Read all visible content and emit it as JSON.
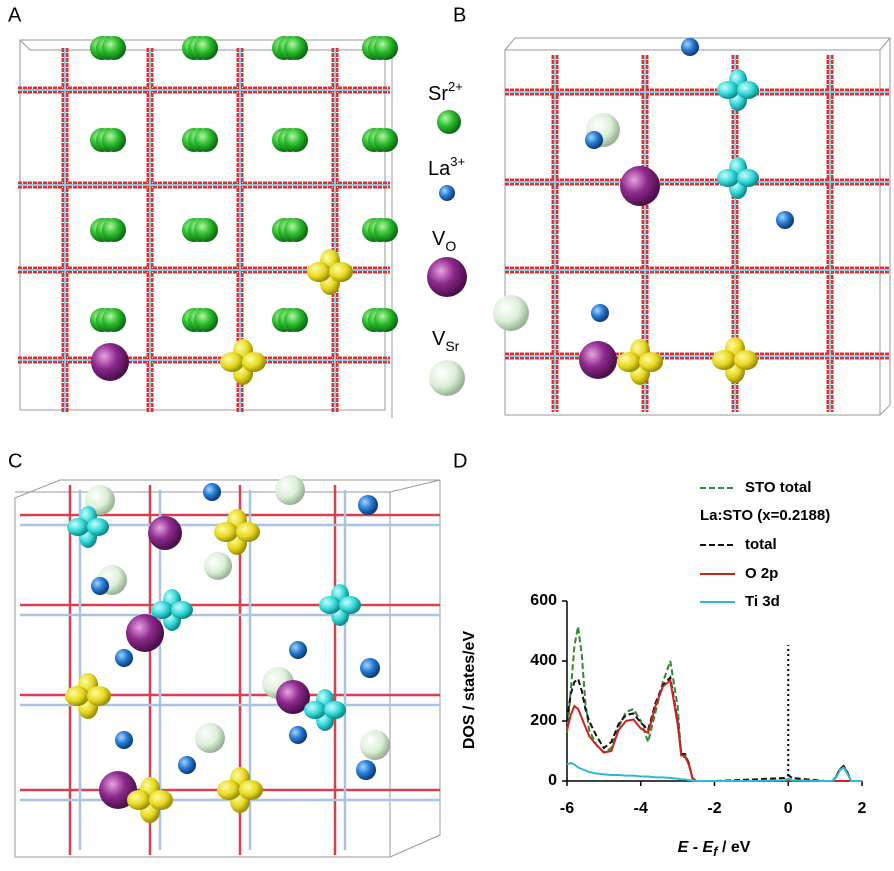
{
  "panel_labels": [
    "A",
    "B",
    "C",
    "D"
  ],
  "species_legend": [
    {
      "base": "Sr",
      "sup": "2+"
    },
    {
      "base": "La",
      "sup": "3+"
    },
    {
      "base": "V",
      "sub": "O"
    },
    {
      "base": "V",
      "sub": "Sr"
    }
  ],
  "chart_data": {
    "type": "line",
    "ylabel": "DOS / states/eV",
    "xlabel": {
      "var": "E",
      "sep": " - ",
      "ref": "E",
      "ref_sub": "f",
      "unit": " / eV"
    },
    "legend_title": "La:STO (x=0.2188)",
    "x": [
      -6,
      -5.9,
      -5.8,
      -5.7,
      -5.6,
      -5.5,
      -5.4,
      -5.2,
      -5.0,
      -4.8,
      -4.6,
      -4.4,
      -4.2,
      -4.0,
      -3.8,
      -3.6,
      -3.4,
      -3.2,
      -3.0,
      -2.9,
      -2.8,
      -2.7,
      -2.6,
      -2.5,
      -2.4,
      -2,
      -1,
      -0.1,
      0,
      0.1,
      1,
      1.2,
      1.3,
      1.4,
      1.5,
      1.6,
      1.7,
      2
    ],
    "series": [
      {
        "name": "STO total",
        "color": "#2e8b2e",
        "dashed": true,
        "values": [
          160,
          300,
          450,
          515,
          420,
          260,
          170,
          120,
          95,
          110,
          180,
          230,
          240,
          200,
          130,
          230,
          330,
          400,
          250,
          80,
          80,
          60,
          10,
          0,
          0,
          0,
          0,
          0,
          5,
          0,
          0,
          0,
          15,
          40,
          50,
          30,
          0,
          0
        ]
      },
      {
        "name": "total",
        "color": "#111111",
        "dashed": true,
        "values": [
          200,
          290,
          330,
          340,
          300,
          240,
          200,
          150,
          110,
          130,
          190,
          220,
          225,
          195,
          170,
          260,
          320,
          345,
          200,
          90,
          90,
          60,
          10,
          0,
          0,
          0,
          5,
          10,
          20,
          10,
          0,
          0,
          15,
          40,
          50,
          30,
          0,
          0
        ]
      },
      {
        "name": "O 2p",
        "color": "#cc2222",
        "dashed": false,
        "values": [
          170,
          220,
          250,
          240,
          210,
          180,
          150,
          120,
          95,
          100,
          170,
          200,
          205,
          175,
          160,
          250,
          315,
          335,
          190,
          85,
          85,
          55,
          10,
          0,
          0,
          0,
          0,
          0,
          0,
          0,
          0,
          0,
          0,
          0,
          0,
          0,
          0,
          0
        ]
      },
      {
        "name": "Ti 3d",
        "color": "#33b5d6",
        "dashed": false,
        "values": [
          55,
          60,
          55,
          45,
          40,
          35,
          30,
          25,
          22,
          20,
          20,
          18,
          18,
          15,
          15,
          12,
          12,
          10,
          8,
          5,
          5,
          3,
          2,
          0,
          0,
          0,
          0,
          2,
          8,
          2,
          0,
          0,
          12,
          35,
          45,
          25,
          0,
          0
        ]
      }
    ],
    "xlim": [
      -6,
      2
    ],
    "xticks": [
      -6,
      -4,
      -2,
      0,
      2
    ],
    "ylim": [
      0,
      600
    ],
    "yticks": [
      0,
      200,
      400,
      600
    ],
    "vline_x": 0
  }
}
